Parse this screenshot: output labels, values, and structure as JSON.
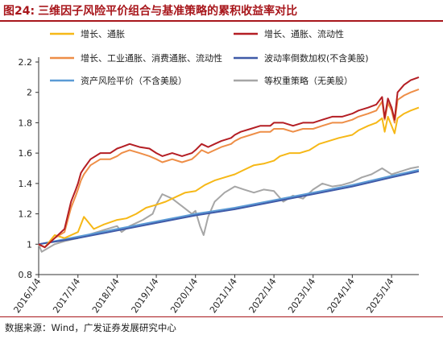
{
  "figure": {
    "number": "图24:",
    "title": "三维因子风险平价组合与基准策略的累积收益率对比"
  },
  "source": "数据来源：Wind，广发证券发展研究中心",
  "chart_data": {
    "type": "line",
    "ylim": [
      0.8,
      2.2
    ],
    "yticks": [
      "0.8",
      "1",
      "1.2",
      "1.4",
      "1.6",
      "1.8",
      "2",
      "2.2"
    ],
    "xlim": [
      "2016-01-04",
      "2025-09-15"
    ],
    "xticks": [
      {
        "date": "2016-01-04",
        "label": "2016/1/4"
      },
      {
        "date": "2017-01-04",
        "label": "2017/1/4"
      },
      {
        "date": "2018-01-04",
        "label": "2018/1/4"
      },
      {
        "date": "2019-01-04",
        "label": "2019/1/4"
      },
      {
        "date": "2020-01-04",
        "label": "2020/1/4"
      },
      {
        "date": "2021-01-04",
        "label": "2021/1/4"
      },
      {
        "date": "2022-01-04",
        "label": "2022/1/4"
      },
      {
        "date": "2023-01-04",
        "label": "2023/1/4"
      },
      {
        "date": "2024-01-04",
        "label": "2024/1/4"
      },
      {
        "date": "2025-01-04",
        "label": "2025/1/4"
      }
    ],
    "grid": false,
    "legend_position": "top",
    "series": [
      {
        "name": "增长、通胀",
        "color": "#f6b817",
        "points": [
          [
            "2016-01-04",
            1.0
          ],
          [
            "2016-03-01",
            0.98
          ],
          [
            "2016-06-01",
            1.06
          ],
          [
            "2016-09-01",
            1.04
          ],
          [
            "2017-01-04",
            1.08
          ],
          [
            "2017-03-01",
            1.18
          ],
          [
            "2017-06-01",
            1.1
          ],
          [
            "2017-09-01",
            1.13
          ],
          [
            "2018-01-04",
            1.16
          ],
          [
            "2018-04-01",
            1.17
          ],
          [
            "2018-07-01",
            1.2
          ],
          [
            "2018-10-01",
            1.24
          ],
          [
            "2019-01-04",
            1.26
          ],
          [
            "2019-04-01",
            1.28
          ],
          [
            "2019-07-01",
            1.31
          ],
          [
            "2019-10-01",
            1.34
          ],
          [
            "2020-01-04",
            1.35
          ],
          [
            "2020-04-01",
            1.39
          ],
          [
            "2020-07-01",
            1.42
          ],
          [
            "2020-10-01",
            1.44
          ],
          [
            "2021-01-04",
            1.46
          ],
          [
            "2021-04-01",
            1.49
          ],
          [
            "2021-07-01",
            1.52
          ],
          [
            "2021-10-01",
            1.53
          ],
          [
            "2022-01-04",
            1.55
          ],
          [
            "2022-03-01",
            1.58
          ],
          [
            "2022-06-01",
            1.6
          ],
          [
            "2022-09-01",
            1.6
          ],
          [
            "2022-12-01",
            1.62
          ],
          [
            "2023-03-01",
            1.66
          ],
          [
            "2023-06-01",
            1.68
          ],
          [
            "2023-09-01",
            1.7
          ],
          [
            "2024-01-04",
            1.72
          ],
          [
            "2024-03-01",
            1.75
          ],
          [
            "2024-06-01",
            1.78
          ],
          [
            "2024-08-15",
            1.8
          ],
          [
            "2024-10-08",
            1.83
          ],
          [
            "2024-11-01",
            1.74
          ],
          [
            "2024-12-01",
            1.84
          ],
          [
            "2025-01-04",
            1.78
          ],
          [
            "2025-02-01",
            1.73
          ],
          [
            "2025-03-01",
            1.83
          ],
          [
            "2025-05-01",
            1.86
          ],
          [
            "2025-07-01",
            1.88
          ],
          [
            "2025-09-15",
            1.9
          ]
        ]
      },
      {
        "name": "增长、通胀、流动性",
        "color": "#b41e24",
        "points": [
          [
            "2016-01-04",
            1.0
          ],
          [
            "2016-03-01",
            0.98
          ],
          [
            "2016-06-01",
            1.04
          ],
          [
            "2016-09-01",
            1.1
          ],
          [
            "2016-11-01",
            1.28
          ],
          [
            "2016-12-15",
            1.36
          ],
          [
            "2017-01-04",
            1.4
          ],
          [
            "2017-02-01",
            1.47
          ],
          [
            "2017-03-01",
            1.5
          ],
          [
            "2017-05-01",
            1.56
          ],
          [
            "2017-08-01",
            1.6
          ],
          [
            "2017-11-01",
            1.6
          ],
          [
            "2018-01-04",
            1.63
          ],
          [
            "2018-02-15",
            1.64
          ],
          [
            "2018-05-01",
            1.66
          ],
          [
            "2018-08-01",
            1.64
          ],
          [
            "2018-11-01",
            1.63
          ],
          [
            "2019-01-04",
            1.6
          ],
          [
            "2019-03-01",
            1.58
          ],
          [
            "2019-06-01",
            1.6
          ],
          [
            "2019-09-01",
            1.58
          ],
          [
            "2019-12-01",
            1.6
          ],
          [
            "2020-01-04",
            1.62
          ],
          [
            "2020-03-01",
            1.66
          ],
          [
            "2020-05-01",
            1.64
          ],
          [
            "2020-07-01",
            1.66
          ],
          [
            "2020-09-01",
            1.68
          ],
          [
            "2020-12-01",
            1.7
          ],
          [
            "2021-01-04",
            1.72
          ],
          [
            "2021-03-01",
            1.74
          ],
          [
            "2021-06-01",
            1.76
          ],
          [
            "2021-09-01",
            1.78
          ],
          [
            "2021-12-01",
            1.78
          ],
          [
            "2022-01-04",
            1.8
          ],
          [
            "2022-04-01",
            1.8
          ],
          [
            "2022-07-01",
            1.78
          ],
          [
            "2022-10-01",
            1.8
          ],
          [
            "2023-01-04",
            1.8
          ],
          [
            "2023-04-01",
            1.82
          ],
          [
            "2023-07-01",
            1.84
          ],
          [
            "2023-10-01",
            1.84
          ],
          [
            "2024-01-04",
            1.86
          ],
          [
            "2024-03-01",
            1.88
          ],
          [
            "2024-06-01",
            1.9
          ],
          [
            "2024-08-15",
            1.92
          ],
          [
            "2024-10-08",
            1.97
          ],
          [
            "2024-11-01",
            1.83
          ],
          [
            "2024-12-01",
            1.96
          ],
          [
            "2025-01-04",
            1.9
          ],
          [
            "2025-02-01",
            1.82
          ],
          [
            "2025-03-01",
            2.0
          ],
          [
            "2025-05-01",
            2.05
          ],
          [
            "2025-07-01",
            2.08
          ],
          [
            "2025-09-15",
            2.1
          ]
        ]
      },
      {
        "name": "增长、工业通胀、消费通胀、流动性",
        "color": "#ee8e47",
        "points": [
          [
            "2016-01-04",
            1.0
          ],
          [
            "2016-03-01",
            0.98
          ],
          [
            "2016-06-01",
            1.04
          ],
          [
            "2016-09-01",
            1.08
          ],
          [
            "2016-11-01",
            1.24
          ],
          [
            "2016-12-15",
            1.32
          ],
          [
            "2017-01-04",
            1.36
          ],
          [
            "2017-02-01",
            1.42
          ],
          [
            "2017-03-01",
            1.46
          ],
          [
            "2017-05-01",
            1.52
          ],
          [
            "2017-08-01",
            1.56
          ],
          [
            "2017-11-01",
            1.56
          ],
          [
            "2018-01-04",
            1.58
          ],
          [
            "2018-02-15",
            1.6
          ],
          [
            "2018-05-01",
            1.62
          ],
          [
            "2018-08-01",
            1.6
          ],
          [
            "2018-11-01",
            1.58
          ],
          [
            "2019-01-04",
            1.56
          ],
          [
            "2019-03-01",
            1.54
          ],
          [
            "2019-06-01",
            1.56
          ],
          [
            "2019-09-01",
            1.54
          ],
          [
            "2019-12-01",
            1.56
          ],
          [
            "2020-01-04",
            1.58
          ],
          [
            "2020-03-01",
            1.62
          ],
          [
            "2020-05-01",
            1.6
          ],
          [
            "2020-07-01",
            1.62
          ],
          [
            "2020-09-01",
            1.64
          ],
          [
            "2020-12-01",
            1.66
          ],
          [
            "2021-01-04",
            1.68
          ],
          [
            "2021-03-01",
            1.7
          ],
          [
            "2021-06-01",
            1.72
          ],
          [
            "2021-09-01",
            1.74
          ],
          [
            "2021-12-01",
            1.74
          ],
          [
            "2022-01-04",
            1.76
          ],
          [
            "2022-04-01",
            1.76
          ],
          [
            "2022-07-01",
            1.74
          ],
          [
            "2022-10-01",
            1.76
          ],
          [
            "2023-01-04",
            1.76
          ],
          [
            "2023-04-01",
            1.78
          ],
          [
            "2023-07-01",
            1.8
          ],
          [
            "2023-10-01",
            1.8
          ],
          [
            "2024-01-04",
            1.82
          ],
          [
            "2024-03-01",
            1.84
          ],
          [
            "2024-06-01",
            1.86
          ],
          [
            "2024-08-15",
            1.88
          ],
          [
            "2024-10-08",
            1.94
          ],
          [
            "2024-11-01",
            1.82
          ],
          [
            "2024-12-01",
            1.93
          ],
          [
            "2025-01-04",
            1.88
          ],
          [
            "2025-02-01",
            1.8
          ],
          [
            "2025-03-01",
            1.95
          ],
          [
            "2025-05-01",
            1.98
          ],
          [
            "2025-07-01",
            2.0
          ],
          [
            "2025-09-15",
            2.02
          ]
        ]
      },
      {
        "name": "波动率倒数加权(不含美股)",
        "color": "#3f5aa8",
        "points": [
          [
            "2016-01-04",
            1.0
          ],
          [
            "2017-01-04",
            1.04
          ],
          [
            "2018-01-04",
            1.09
          ],
          [
            "2019-01-04",
            1.14
          ],
          [
            "2020-01-04",
            1.19
          ],
          [
            "2021-01-04",
            1.23
          ],
          [
            "2022-01-04",
            1.28
          ],
          [
            "2023-01-04",
            1.33
          ],
          [
            "2024-01-04",
            1.38
          ],
          [
            "2025-01-04",
            1.44
          ],
          [
            "2025-09-15",
            1.48
          ]
        ]
      },
      {
        "name": "资产风险平价（不含美股）",
        "color": "#5b9bd5",
        "points": [
          [
            "2016-01-04",
            1.0
          ],
          [
            "2017-01-04",
            1.05
          ],
          [
            "2018-01-04",
            1.1
          ],
          [
            "2019-01-04",
            1.15
          ],
          [
            "2020-01-04",
            1.2
          ],
          [
            "2021-01-04",
            1.24
          ],
          [
            "2022-01-04",
            1.29
          ],
          [
            "2023-01-04",
            1.34
          ],
          [
            "2024-01-04",
            1.39
          ],
          [
            "2025-01-04",
            1.45
          ],
          [
            "2025-09-15",
            1.49
          ]
        ]
      },
      {
        "name": "等权重策略（无美股）",
        "color": "#a6a6a6",
        "points": [
          [
            "2016-01-04",
            1.0
          ],
          [
            "2016-02-01",
            0.95
          ],
          [
            "2016-06-01",
            1.0
          ],
          [
            "2016-09-01",
            1.02
          ],
          [
            "2017-01-04",
            1.04
          ],
          [
            "2017-04-01",
            1.06
          ],
          [
            "2017-07-01",
            1.08
          ],
          [
            "2017-10-01",
            1.1
          ],
          [
            "2018-01-04",
            1.12
          ],
          [
            "2018-02-15",
            1.08
          ],
          [
            "2018-05-01",
            1.12
          ],
          [
            "2018-09-01",
            1.16
          ],
          [
            "2018-12-01",
            1.2
          ],
          [
            "2019-01-04",
            1.26
          ],
          [
            "2019-03-01",
            1.33
          ],
          [
            "2019-06-01",
            1.3
          ],
          [
            "2019-09-01",
            1.25
          ],
          [
            "2019-12-01",
            1.2
          ],
          [
            "2020-01-04",
            1.22
          ],
          [
            "2020-02-15",
            1.12
          ],
          [
            "2020-03-20",
            1.06
          ],
          [
            "2020-05-01",
            1.18
          ],
          [
            "2020-07-01",
            1.28
          ],
          [
            "2020-10-01",
            1.34
          ],
          [
            "2021-01-04",
            1.38
          ],
          [
            "2021-04-01",
            1.36
          ],
          [
            "2021-07-01",
            1.34
          ],
          [
            "2021-10-01",
            1.36
          ],
          [
            "2022-01-04",
            1.35
          ],
          [
            "2022-04-01",
            1.28
          ],
          [
            "2022-07-01",
            1.32
          ],
          [
            "2022-10-01",
            1.3
          ],
          [
            "2023-01-04",
            1.36
          ],
          [
            "2023-04-01",
            1.4
          ],
          [
            "2023-07-01",
            1.38
          ],
          [
            "2023-10-01",
            1.39
          ],
          [
            "2024-01-04",
            1.41
          ],
          [
            "2024-04-01",
            1.44
          ],
          [
            "2024-07-01",
            1.46
          ],
          [
            "2024-10-08",
            1.5
          ],
          [
            "2025-01-04",
            1.46
          ],
          [
            "2025-04-01",
            1.48
          ],
          [
            "2025-07-01",
            1.5
          ],
          [
            "2025-09-15",
            1.51
          ]
        ]
      }
    ]
  }
}
